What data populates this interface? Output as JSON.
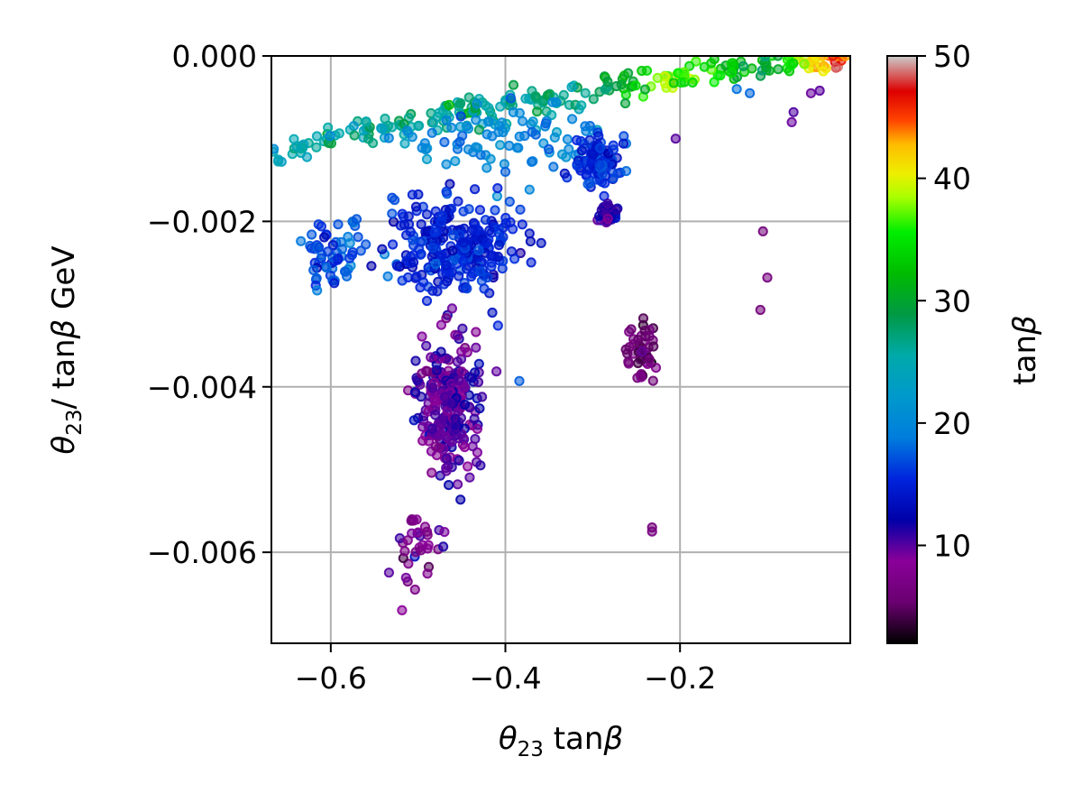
{
  "chart_data": {
    "type": "scatter",
    "title": "",
    "xlabel": "θ₂₃ tanβ",
    "ylabel": "θ₂₃/ tanβ GeV",
    "xlim": [
      -0.668,
      -0.005
    ],
    "ylim": [
      -0.0071,
      0.0
    ],
    "xticks": [
      -0.6,
      -0.4,
      -0.2
    ],
    "xtick_labels": [
      "−0.6",
      "−0.4",
      "−0.2"
    ],
    "yticks": [
      0.0,
      -0.002,
      -0.004,
      -0.006
    ],
    "ytick_labels": [
      "0.000",
      "−0.002",
      "−0.004",
      "−0.006"
    ],
    "grid": true,
    "colorbar": {
      "label": "tanβ",
      "range": [
        2,
        50
      ],
      "ticks": [
        10,
        20,
        30,
        40,
        50
      ],
      "tick_labels": [
        "10",
        "20",
        "30",
        "40",
        "50"
      ],
      "colormap": "nipy_spectral"
    },
    "clusters": [
      {
        "desc": "upper arc",
        "x": [
          -0.668,
          -0.005
        ],
        "y_at_x": [
          [
            -0.668,
            -0.00125
          ],
          [
            -0.6,
            -0.00098
          ],
          [
            -0.5,
            -0.00078
          ],
          [
            -0.4,
            -0.0006
          ],
          [
            -0.3,
            -0.00042
          ],
          [
            -0.2,
            -0.00025
          ],
          [
            -0.1,
            -0.0001
          ],
          [
            -0.005,
            0.0
          ]
        ],
        "tanb_at_x": [
          [
            -0.668,
            24
          ],
          [
            -0.45,
            27
          ],
          [
            -0.3,
            26
          ],
          [
            -0.22,
            38
          ],
          [
            -0.1,
            30
          ],
          [
            -0.02,
            46
          ]
        ],
        "count": 260
      },
      {
        "desc": "teal band",
        "center": [
          -0.4,
          -0.001
        ],
        "spread": [
          0.12,
          0.0004
        ],
        "tanb": 20,
        "count": 90
      },
      {
        "desc": "big cyan-blue mass",
        "center": [
          -0.46,
          -0.0023
        ],
        "spread": [
          0.07,
          0.0006
        ],
        "tanb": 15,
        "count": 280
      },
      {
        "desc": "left teal wing",
        "center": [
          -0.6,
          -0.0024
        ],
        "spread": [
          0.035,
          0.0005
        ],
        "tanb": 17,
        "count": 60
      },
      {
        "desc": "dark blue column",
        "center": [
          -0.465,
          -0.0042
        ],
        "spread": [
          0.035,
          0.0008
        ],
        "tanb": 10,
        "count": 260
      },
      {
        "desc": "lower tail",
        "center": [
          -0.5,
          -0.006
        ],
        "spread": [
          0.035,
          0.0006
        ],
        "tanb": 8,
        "count": 35
      },
      {
        "desc": "cyan blob",
        "center": [
          -0.295,
          -0.0013
        ],
        "spread": [
          0.025,
          0.00025
        ],
        "tanb": 15,
        "count": 90
      },
      {
        "desc": "blue blob",
        "center": [
          -0.282,
          -0.0019
        ],
        "spread": [
          0.012,
          0.00014
        ],
        "tanb": 11,
        "count": 35
      },
      {
        "desc": "purple trail",
        "center": [
          -0.245,
          -0.0036
        ],
        "spread": [
          0.018,
          0.0004
        ],
        "tanb": 6,
        "count": 45
      },
      {
        "desc": "isolated purple",
        "points": [
          [
            -0.105,
            -0.00212
          ],
          [
            -0.1,
            -0.00268
          ],
          [
            -0.108,
            -0.00307
          ],
          [
            -0.232,
            -0.0057
          ],
          [
            -0.232,
            -0.00575
          ]
        ],
        "tanb": 6
      },
      {
        "desc": "right dark blue",
        "points": [
          [
            -0.07,
            -0.00068
          ],
          [
            -0.072,
            -0.0008
          ],
          [
            -0.05,
            -0.00045
          ],
          [
            -0.04,
            -0.00042
          ],
          [
            -0.205,
            -0.001
          ]
        ],
        "tanb": 10
      },
      {
        "desc": "scattered teal",
        "points": [
          [
            -0.384,
            -0.00393
          ],
          [
            -0.4,
            -0.0014
          ],
          [
            -0.37,
            -0.00128
          ],
          [
            -0.345,
            -0.00134
          ],
          [
            -0.12,
            -0.00045
          ],
          [
            -0.135,
            -0.0004
          ]
        ],
        "tanb": 18
      }
    ]
  }
}
